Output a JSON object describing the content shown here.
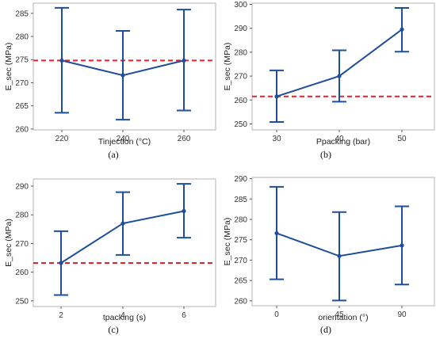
{
  "chart_data": [
    {
      "type": "line",
      "panel_label": "(a)",
      "xlabel": "Tinjection (°C)",
      "ylabel": "E_sec (MPa)",
      "categories": [
        "220",
        "240",
        "260"
      ],
      "series": [
        {
          "values": [
            274.8,
            271.6,
            274.8
          ],
          "err_low": [
            263.5,
            262.0,
            264.0
          ],
          "err_high": [
            286.2,
            281.2,
            285.8
          ]
        }
      ],
      "reference_line": 274.8,
      "ylim": [
        259.8,
        287.2
      ],
      "yticks": [
        260,
        265,
        270,
        275,
        280,
        285
      ],
      "grid": false
    },
    {
      "type": "line",
      "panel_label": "(b)",
      "xlabel": "Ppacking (bar)",
      "ylabel": "E_sec (MPa)",
      "categories": [
        "30",
        "40",
        "50"
      ],
      "series": [
        {
          "values": [
            261.5,
            270.0,
            289.5
          ],
          "err_low": [
            250.8,
            259.3,
            280.2
          ],
          "err_high": [
            272.4,
            280.8,
            298.5
          ]
        }
      ],
      "reference_line": 261.5,
      "ylim": [
        247.5,
        300.5
      ],
      "yticks": [
        250,
        260,
        270,
        280,
        290,
        300
      ],
      "grid": false
    },
    {
      "type": "line",
      "panel_label": "(c)",
      "xlabel": "tpacking (s)",
      "ylabel": "E_sec (MPa)",
      "categories": [
        "2",
        "4",
        "6"
      ],
      "series": [
        {
          "values": [
            263.2,
            277.0,
            281.3
          ],
          "err_low": [
            252.0,
            266.0,
            272.0
          ],
          "err_high": [
            274.3,
            287.9,
            290.8
          ]
        }
      ],
      "reference_line": 263.2,
      "ylim": [
        248.0,
        292.5
      ],
      "yticks": [
        250,
        260,
        270,
        280,
        290
      ],
      "grid": false
    },
    {
      "type": "line",
      "panel_label": "(d)",
      "xlabel": "orientation (°)",
      "ylabel": "E_sec (MPa)",
      "categories": [
        "0",
        "45",
        "90"
      ],
      "series": [
        {
          "values": [
            276.6,
            271.0,
            273.6
          ],
          "err_low": [
            265.3,
            260.1,
            264.0
          ],
          "err_high": [
            288.0,
            281.8,
            283.2
          ]
        }
      ],
      "ylim": [
        258.8,
        290.3
      ],
      "yticks": [
        260,
        265,
        270,
        275,
        280,
        285,
        290
      ],
      "grid": false
    }
  ],
  "colors": {
    "series": "#1f4e9a",
    "reference": "#e8202a",
    "frame": "#b5b5b5",
    "text": "#333333"
  }
}
